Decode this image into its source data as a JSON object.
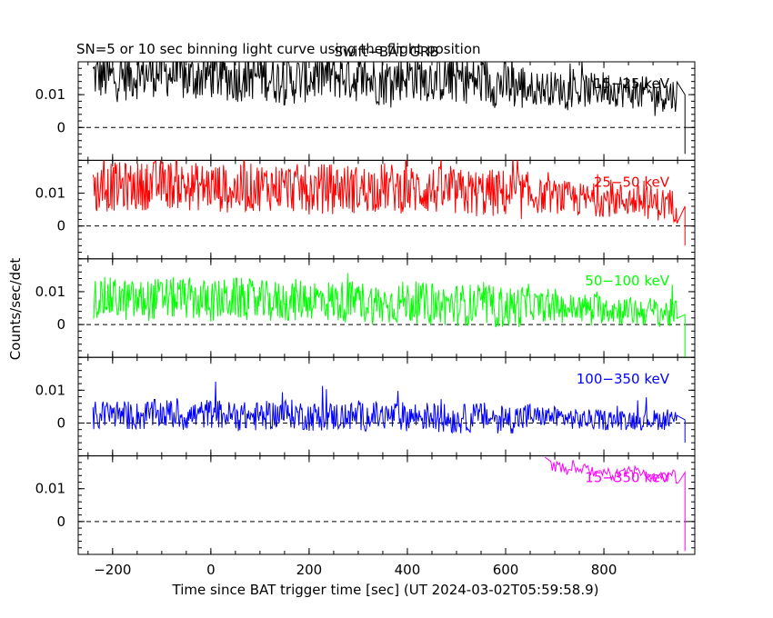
{
  "chart_data": {
    "type": "line",
    "title": "Swift−BAT GRB",
    "subtitle": "SN=5 or 10 sec binning light curve using the flight position",
    "xlabel": "Time since BAT trigger time [sec] (UT 2024-03-02T05:59:58.9)",
    "ylabel": "Counts/sec/det",
    "xlim": [
      -270,
      985
    ],
    "x_ticks": [
      -200,
      0,
      200,
      400,
      600,
      800
    ],
    "x_tick_labels": [
      "−200",
      "0",
      "200",
      "400",
      "600",
      "800"
    ],
    "ylim": [
      -0.01,
      0.02
    ],
    "y_ticks": [
      0,
      0.01
    ],
    "y_tick_labels": [
      "0",
      "0.01"
    ],
    "zero_line": "dashed",
    "panels": [
      {
        "name": "15−25 keV",
        "color": "#000000",
        "x": [
          -240,
          -200,
          -150,
          -100,
          -50,
          0,
          50,
          100,
          150,
          200,
          250,
          300,
          350,
          400,
          450,
          500,
          550,
          600,
          650,
          700,
          750,
          800,
          850,
          900,
          950,
          965
        ],
        "y": [
          0.016,
          0.015,
          0.016,
          0.017,
          0.015,
          0.016,
          0.015,
          0.016,
          0.014,
          0.015,
          0.016,
          0.015,
          0.014,
          0.016,
          0.015,
          0.015,
          0.014,
          0.013,
          0.012,
          0.012,
          0.011,
          0.012,
          0.011,
          0.01,
          0.01,
          -0.008
        ]
      },
      {
        "name": "25−50 keV",
        "color": "#ff0000",
        "x": [
          -240,
          -200,
          -150,
          -100,
          -50,
          0,
          50,
          100,
          150,
          200,
          250,
          300,
          350,
          400,
          450,
          500,
          550,
          600,
          650,
          700,
          750,
          800,
          850,
          900,
          950,
          965
        ],
        "y": [
          0.011,
          0.012,
          0.012,
          0.013,
          0.012,
          0.012,
          0.011,
          0.012,
          0.012,
          0.011,
          0.012,
          0.011,
          0.012,
          0.011,
          0.011,
          0.01,
          0.01,
          0.01,
          0.009,
          0.009,
          0.008,
          0.008,
          0.008,
          0.007,
          0.006,
          -0.006
        ]
      },
      {
        "name": "50−100 keV",
        "color": "#00ff00",
        "x": [
          -240,
          -200,
          -150,
          -100,
          -50,
          0,
          50,
          100,
          150,
          200,
          250,
          300,
          350,
          400,
          450,
          500,
          550,
          600,
          650,
          700,
          750,
          800,
          850,
          900,
          950,
          965
        ],
        "y": [
          0.008,
          0.008,
          0.007,
          0.008,
          0.008,
          0.007,
          0.008,
          0.007,
          0.007,
          0.008,
          0.007,
          0.007,
          0.006,
          0.007,
          0.006,
          0.006,
          0.006,
          0.005,
          0.006,
          0.005,
          0.005,
          0.005,
          0.004,
          0.004,
          0.003,
          -0.01
        ]
      },
      {
        "name": "100−350 keV",
        "color": "#0000ff",
        "x": [
          -240,
          -200,
          -150,
          -100,
          -50,
          0,
          50,
          100,
          150,
          200,
          250,
          300,
          350,
          400,
          450,
          500,
          550,
          600,
          650,
          700,
          750,
          800,
          850,
          900,
          950,
          965
        ],
        "y": [
          0.002,
          0.003,
          0.002,
          0.003,
          0.002,
          0.003,
          0.002,
          0.002,
          0.003,
          0.002,
          0.002,
          0.002,
          0.002,
          0.002,
          0.002,
          0.001,
          0.002,
          0.001,
          0.002,
          0.002,
          0.001,
          0.001,
          0.001,
          0.001,
          0.001,
          -0.006
        ]
      },
      {
        "name": "15−350 keV",
        "color": "#ff00ff",
        "x": [
          680,
          700,
          720,
          740,
          760,
          780,
          800,
          820,
          840,
          860,
          880,
          900,
          920,
          940,
          955,
          965
        ],
        "y": [
          0.02,
          0.019,
          0.018,
          0.019,
          0.018,
          0.017,
          0.018,
          0.016,
          0.017,
          0.017,
          0.016,
          0.016,
          0.015,
          0.016,
          0.015,
          -0.009
        ]
      }
    ]
  }
}
